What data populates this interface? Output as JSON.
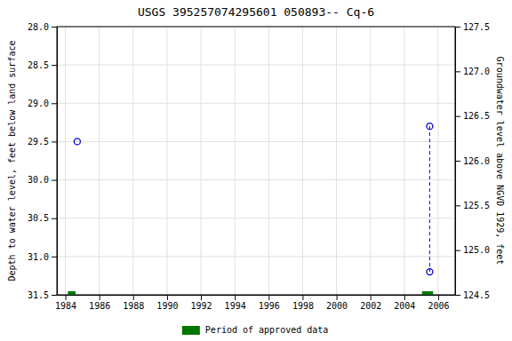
{
  "chart_data": {
    "type": "scatter",
    "title": "USGS 395257074295601 050893-- Cq-6",
    "y_label": "Depth to water level, feet below land surface",
    "y2_label": "Groundwater level above NGVD 1929, feet",
    "xlim": [
      1983.5,
      2007.0
    ],
    "xticks": [
      1984,
      1986,
      1988,
      1990,
      1992,
      1994,
      1996,
      1998,
      2000,
      2002,
      2004,
      2006
    ],
    "ylim": [
      31.5,
      28.0
    ],
    "yticks": [
      {
        "value": 28.0,
        "label": "28.0"
      },
      28.5,
      {
        "value": 29.0,
        "label": "29.0"
      },
      29.5,
      {
        "value": 30.0,
        "label": "30.0"
      },
      30.5,
      {
        "value": 31.0,
        "label": "31.0"
      },
      31.5
    ],
    "y2lim": [
      124.5,
      127.5
    ],
    "y2ticks": [
      127.5,
      {
        "value": 127.0,
        "label": "127.0"
      },
      126.5,
      {
        "value": 126.0,
        "label": "126.0"
      },
      125.5,
      {
        "value": 125.0,
        "label": "125.0"
      },
      124.5
    ],
    "grid": true,
    "legend": "bottom",
    "series": [
      {
        "type": "scatter",
        "x": [
          1984.7,
          2005.5,
          2005.5
        ],
        "values": [
          29.5,
          29.3,
          31.2
        ],
        "color": "#0000cc",
        "marker": "circle"
      },
      {
        "type": "line",
        "x": [
          2005.5,
          2005.5
        ],
        "values": [
          29.3,
          31.2
        ],
        "color": "#0000cc",
        "line_style": "dashed"
      },
      {
        "type": "period",
        "name": "Period of approved data",
        "color": "#007700",
        "x_start": [
          1984.15,
          2005.05
        ],
        "x_end": [
          1984.6,
          2005.7
        ]
      }
    ]
  }
}
